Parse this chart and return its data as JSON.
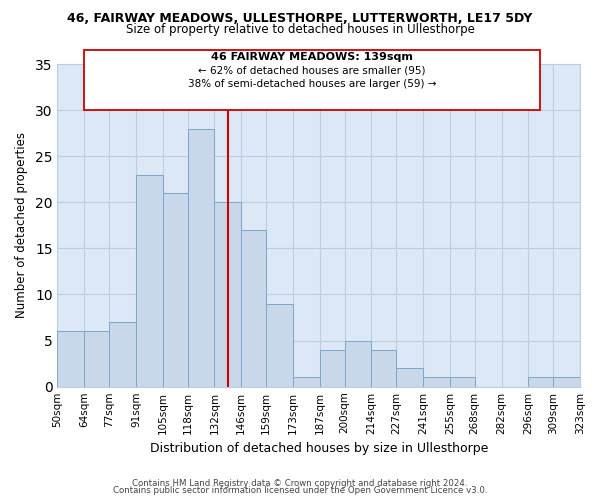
{
  "title1": "46, FAIRWAY MEADOWS, ULLESTHORPE, LUTTERWORTH, LE17 5DY",
  "title2": "Size of property relative to detached houses in Ullesthorpe",
  "xlabel": "Distribution of detached houses by size in Ullesthorpe",
  "ylabel": "Number of detached properties",
  "bin_edges": [
    50,
    64,
    77,
    91,
    105,
    118,
    132,
    146,
    159,
    173,
    187,
    200,
    214,
    227,
    241,
    255,
    268,
    282,
    296,
    309,
    323
  ],
  "bin_labels": [
    "50sqm",
    "64sqm",
    "77sqm",
    "91sqm",
    "105sqm",
    "118sqm",
    "132sqm",
    "146sqm",
    "159sqm",
    "173sqm",
    "187sqm",
    "200sqm",
    "214sqm",
    "227sqm",
    "241sqm",
    "255sqm",
    "268sqm",
    "282sqm",
    "296sqm",
    "309sqm",
    "323sqm"
  ],
  "counts": [
    6,
    6,
    7,
    23,
    21,
    28,
    20,
    17,
    9,
    1,
    4,
    5,
    4,
    2,
    1,
    1,
    0,
    0,
    1,
    1
  ],
  "bar_color": "#c8d8ea",
  "bar_edgecolor": "#7aa8c8",
  "property_line_x": 139,
  "property_line_color": "#cc0000",
  "ylim": [
    0,
    35
  ],
  "yticks": [
    0,
    5,
    10,
    15,
    20,
    25,
    30,
    35
  ],
  "annotation_title": "46 FAIRWAY MEADOWS: 139sqm",
  "annotation_line1": "← 62% of detached houses are smaller (95)",
  "annotation_line2": "38% of semi-detached houses are larger (59) →",
  "footer1": "Contains HM Land Registry data © Crown copyright and database right 2024.",
  "footer2": "Contains public sector information licensed under the Open Government Licence v3.0.",
  "plot_bg_color": "#dce8f5",
  "fig_bg_color": "#ffffff",
  "grid_color": "#b8cfe0"
}
